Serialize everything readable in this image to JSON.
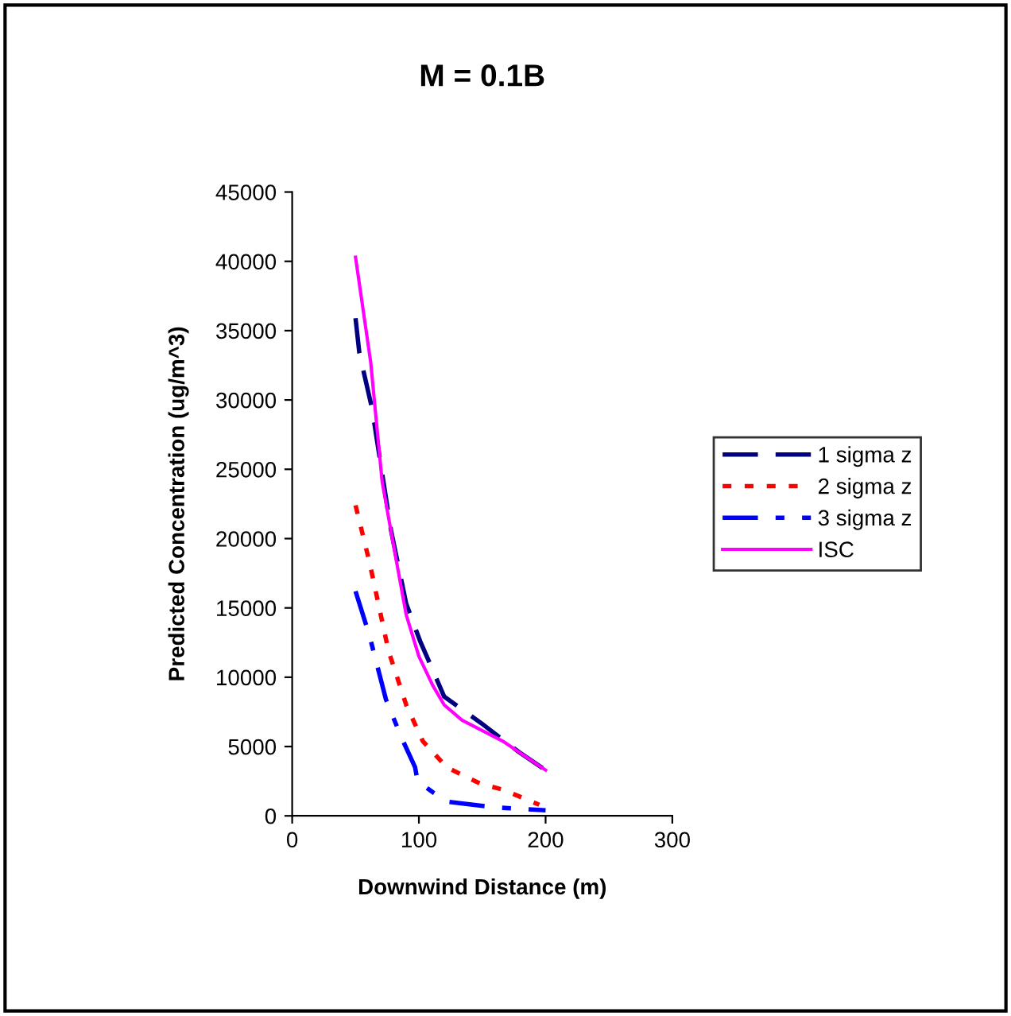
{
  "chart_data": {
    "type": "line",
    "title": "M = 0.1B",
    "xlabel": "Downwind Distance (m)",
    "ylabel": "Predicted Concentration (ug/m^3)",
    "xlim": [
      0,
      300
    ],
    "xticks": [
      0,
      100,
      200,
      300
    ],
    "ylim": [
      0,
      45000
    ],
    "yticks": [
      0,
      5000,
      10000,
      15000,
      20000,
      25000,
      30000,
      35000,
      40000,
      45000
    ],
    "grid": false,
    "legend": "right",
    "marker": "none",
    "series": [
      {
        "name": "1 sigma z",
        "color": "#000080",
        "line_style": "dashed",
        "x": [
          50,
          53,
          63,
          78,
          90,
          101,
          120,
          149,
          179,
          200
        ],
        "values": [
          35900,
          33400,
          29400,
          20600,
          15300,
          12600,
          8600,
          6700,
          4600,
          3300
        ]
      },
      {
        "name": "2 sigma z",
        "color": "#ff0000",
        "line_style": "dotted",
        "x": [
          50,
          61,
          76,
          90,
          103,
          122,
          149,
          166,
          195
        ],
        "values": [
          22400,
          18300,
          11900,
          8000,
          5400,
          3500,
          2300,
          1900,
          800
        ]
      },
      {
        "name": "3 sigma z",
        "color": "#0000ff",
        "line_style": "dashdot",
        "x": [
          50,
          61,
          74,
          86,
          97,
          99,
          111,
          124,
          162,
          200
        ],
        "values": [
          16200,
          13000,
          8400,
          5700,
          3500,
          2500,
          1700,
          1000,
          600,
          400
        ]
      },
      {
        "name": "ISC",
        "color": "#ff00ff",
        "line_style": "solid",
        "x": [
          50,
          62,
          71,
          80,
          90,
          100,
          111,
          120,
          134,
          166,
          200
        ],
        "values": [
          40300,
          32700,
          24100,
          19500,
          14500,
          11500,
          9400,
          8000,
          6900,
          5400,
          3300
        ]
      }
    ]
  }
}
